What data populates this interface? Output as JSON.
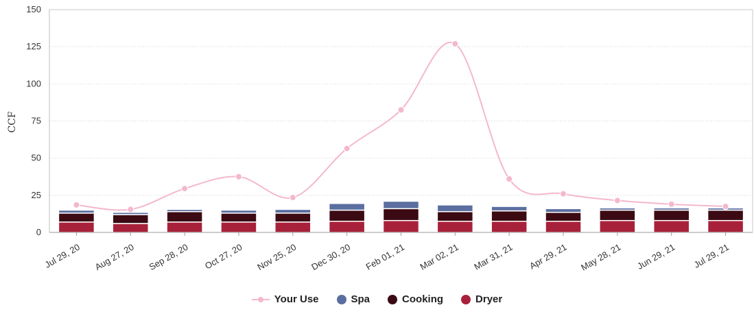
{
  "chart_data": {
    "type": "bar",
    "stacked": true,
    "ylabel": "CCF",
    "xlabel": "",
    "ylim": [
      0,
      150
    ],
    "yticks": [
      0,
      25,
      50,
      75,
      100,
      125,
      150
    ],
    "grid": true,
    "legend_position": "bottom-center",
    "categories": [
      "Jul 29, 20",
      "Aug 27, 20",
      "Sep 28, 20",
      "Oct 27, 20",
      "Nov 25, 20",
      "Dec 30, 20",
      "Feb 01, 21",
      "Mar 02, 21",
      "Mar 31, 21",
      "Apr 29, 21",
      "May 28, 21",
      "Jun 29, 21",
      "Jul 29, 21"
    ],
    "series": [
      {
        "name": "Dryer",
        "kind": "bar",
        "color": "#a8213a",
        "values": [
          7,
          6,
          7,
          7,
          7,
          7.5,
          8,
          7.5,
          7.5,
          7.5,
          8,
          8,
          8
        ]
      },
      {
        "name": "Cooking",
        "kind": "bar",
        "color": "#3b0a12",
        "values": [
          6,
          6,
          7,
          6,
          6,
          7.5,
          8,
          6.5,
          7,
          6,
          7,
          7,
          7
        ]
      },
      {
        "name": "Spa",
        "kind": "bar",
        "color": "#5a6ea0",
        "values": [
          2,
          1.5,
          1.5,
          2,
          2.5,
          4.5,
          5,
          4.5,
          3,
          2.5,
          1.5,
          1.5,
          1.5
        ]
      },
      {
        "name": "Your Use",
        "kind": "line",
        "color": "#f4b8cb",
        "values": [
          18.5,
          15.5,
          29.5,
          37.5,
          23.5,
          56.5,
          82.5,
          127,
          36,
          26,
          21.5,
          19,
          17.5
        ]
      }
    ]
  },
  "legend": {
    "your_use": "Your Use",
    "spa": "Spa",
    "cooking": "Cooking",
    "dryer": "Dryer"
  },
  "colors": {
    "your_use": "#f4b8cb",
    "spa": "#5a6ea0",
    "cooking": "#3b0a12",
    "dryer": "#a8213a"
  }
}
